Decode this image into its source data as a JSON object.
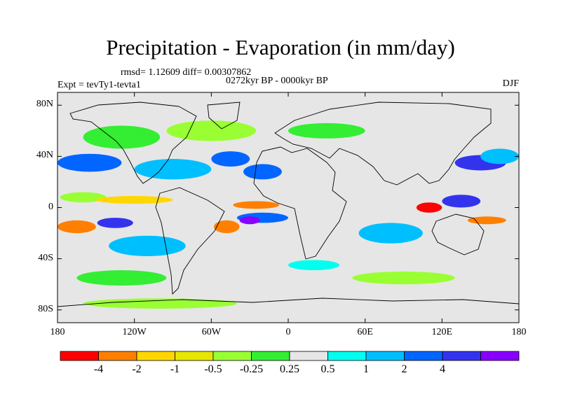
{
  "map": {
    "title": "Precipitation - Evaporation (in mm/day)",
    "stats_line": "rmsd= 1.12609 diff= 0.00307862",
    "period_line": "0272kyr BP - 0000kyr BP",
    "experiment_line": "Expt = tevTy1-tevta1",
    "season": "DJF",
    "projection": "cylindrical equidistant",
    "lon_range": [
      -180,
      180
    ],
    "lat_range": [
      -90,
      90
    ],
    "background_color": "#e6e6e6",
    "x_ticks": [
      {
        "value": -180,
        "label": "180"
      },
      {
        "value": -120,
        "label": "120W"
      },
      {
        "value": -60,
        "label": "60W"
      },
      {
        "value": 0,
        "label": "0"
      },
      {
        "value": 60,
        "label": "60E"
      },
      {
        "value": 120,
        "label": "120E"
      },
      {
        "value": 180,
        "label": "180"
      }
    ],
    "y_ticks": [
      {
        "value": 80,
        "label": "80N"
      },
      {
        "value": 40,
        "label": "40N"
      },
      {
        "value": 0,
        "label": "0"
      },
      {
        "value": -40,
        "label": "40S"
      },
      {
        "value": -80,
        "label": "80S"
      }
    ]
  },
  "colorbar": {
    "colors": [
      "#ff0000",
      "#ff8000",
      "#ffd700",
      "#e6e600",
      "#99ff33",
      "#33ee33",
      "#e6e6e6",
      "#00ffee",
      "#00bfff",
      "#0066ff",
      "#3333ee",
      "#8800ff"
    ],
    "labels": [
      "-4",
      "-2",
      "-1",
      "-0.5",
      "-0.25",
      "0.25",
      "0.5",
      "1",
      "2",
      "4"
    ]
  },
  "field_patches": [
    {
      "color": "#33ee33",
      "lon": -130,
      "lat": 55,
      "rlon": 30,
      "rlat": 9
    },
    {
      "color": "#99ff33",
      "lon": -60,
      "lat": 60,
      "rlon": 35,
      "rlat": 8
    },
    {
      "color": "#33ee33",
      "lon": 30,
      "lat": 60,
      "rlon": 30,
      "rlat": 6
    },
    {
      "color": "#0066ff",
      "lon": -155,
      "lat": 35,
      "rlon": 25,
      "rlat": 7
    },
    {
      "color": "#00bfff",
      "lon": -90,
      "lat": 30,
      "rlon": 30,
      "rlat": 8
    },
    {
      "color": "#0066ff",
      "lon": -45,
      "lat": 38,
      "rlon": 15,
      "rlat": 6
    },
    {
      "color": "#3333ee",
      "lon": 150,
      "lat": 35,
      "rlon": 20,
      "rlat": 6
    },
    {
      "color": "#00bfff",
      "lon": 165,
      "lat": 40,
      "rlon": 15,
      "rlat": 6
    },
    {
      "color": "#0066ff",
      "lon": -20,
      "lat": 28,
      "rlon": 15,
      "rlat": 6
    },
    {
      "color": "#99ff33",
      "lon": -160,
      "lat": 8,
      "rlon": 18,
      "rlat": 4
    },
    {
      "color": "#ffd700",
      "lon": -120,
      "lat": 6,
      "rlon": 30,
      "rlat": 3
    },
    {
      "color": "#ff8000",
      "lon": -25,
      "lat": 2,
      "rlon": 18,
      "rlat": 3
    },
    {
      "color": "#0066ff",
      "lon": -20,
      "lat": -8,
      "rlon": 20,
      "rlat": 4
    },
    {
      "color": "#ff8000",
      "lon": -165,
      "lat": -15,
      "rlon": 15,
      "rlat": 5
    },
    {
      "color": "#3333ee",
      "lon": -135,
      "lat": -12,
      "rlon": 14,
      "rlat": 4
    },
    {
      "color": "#8800ff",
      "lon": -30,
      "lat": -10,
      "rlon": 8,
      "rlat": 3
    },
    {
      "color": "#ff8000",
      "lon": -48,
      "lat": -15,
      "rlon": 10,
      "rlat": 5
    },
    {
      "color": "#ff0000",
      "lon": 110,
      "lat": 0,
      "rlon": 10,
      "rlat": 4
    },
    {
      "color": "#3333ee",
      "lon": 135,
      "lat": 5,
      "rlon": 15,
      "rlat": 5
    },
    {
      "color": "#ff8000",
      "lon": 155,
      "lat": -10,
      "rlon": 15,
      "rlat": 3
    },
    {
      "color": "#00bfff",
      "lon": -110,
      "lat": -30,
      "rlon": 30,
      "rlat": 8
    },
    {
      "color": "#00bfff",
      "lon": 80,
      "lat": -20,
      "rlon": 25,
      "rlat": 8
    },
    {
      "color": "#33ee33",
      "lon": -130,
      "lat": -55,
      "rlon": 35,
      "rlat": 6
    },
    {
      "color": "#99ff33",
      "lon": 90,
      "lat": -55,
      "rlon": 40,
      "rlat": 5
    },
    {
      "color": "#00ffee",
      "lon": 20,
      "lat": -45,
      "rlon": 20,
      "rlat": 4
    },
    {
      "color": "#99ff33",
      "lon": -100,
      "lat": -75,
      "rlon": 60,
      "rlat": 4
    }
  ]
}
